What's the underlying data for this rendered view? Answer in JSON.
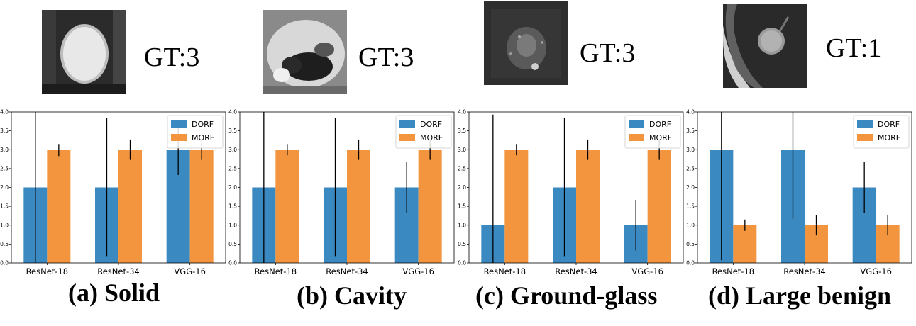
{
  "panels": [
    {
      "gt_label": "GT:3",
      "caption": "(a) Solid",
      "thumb": "solid"
    },
    {
      "gt_label": "GT:3",
      "caption": "(b) Cavity",
      "thumb": "cavity"
    },
    {
      "gt_label": "GT:3",
      "caption": "(c) Ground-glass",
      "thumb": "ground-glass"
    },
    {
      "gt_label": "GT:1",
      "caption": "(d) Large benign",
      "thumb": "large-benign"
    }
  ],
  "colors": {
    "dorf": "#3a8ac1",
    "morf": "#f3953f",
    "error": "#000000"
  },
  "chart_data": [
    {
      "type": "bar",
      "categories": [
        "ResNet-18",
        "ResNet-34",
        "VGG-16"
      ],
      "series": [
        {
          "name": "DORF",
          "values": [
            2,
            2,
            3
          ],
          "err_low": [
            0.0,
            0.18,
            2.33
          ],
          "err_high": [
            4.0,
            3.83,
            3.67
          ]
        },
        {
          "name": "MORF",
          "values": [
            3,
            3,
            3
          ],
          "err_low": [
            2.83,
            2.73,
            2.73
          ],
          "err_high": [
            3.15,
            3.27,
            3.27
          ]
        }
      ],
      "ylim": [
        0,
        4.0
      ],
      "yticks": [
        "0.0",
        "0.5",
        "1.0",
        "1.5",
        "2.0",
        "2.5",
        "3.0",
        "3.5",
        "4.0"
      ],
      "legend": "top-right"
    },
    {
      "type": "bar",
      "categories": [
        "ResNet-18",
        "ResNet-34",
        "VGG-16"
      ],
      "series": [
        {
          "name": "DORF",
          "values": [
            2,
            2,
            2
          ],
          "err_low": [
            0.0,
            0.18,
            1.33
          ],
          "err_high": [
            4.0,
            3.83,
            2.67
          ]
        },
        {
          "name": "MORF",
          "values": [
            3,
            3,
            3
          ],
          "err_low": [
            2.85,
            2.73,
            2.73
          ],
          "err_high": [
            3.15,
            3.27,
            3.27
          ]
        }
      ],
      "ylim": [
        0,
        4.0
      ],
      "yticks": [
        "0.0",
        "0.5",
        "1.0",
        "1.5",
        "2.0",
        "2.5",
        "3.0",
        "3.5",
        "4.0"
      ],
      "legend": "top-right"
    },
    {
      "type": "bar",
      "categories": [
        "ResNet-18",
        "ResNet-34",
        "VGG-16"
      ],
      "series": [
        {
          "name": "DORF",
          "values": [
            1,
            2,
            1
          ],
          "err_low": [
            0.0,
            0.18,
            0.33
          ],
          "err_high": [
            3.93,
            3.83,
            1.67
          ]
        },
        {
          "name": "MORF",
          "values": [
            3,
            3,
            3
          ],
          "err_low": [
            2.85,
            2.73,
            2.73
          ],
          "err_high": [
            3.15,
            3.27,
            3.27
          ]
        }
      ],
      "ylim": [
        0,
        4.0
      ],
      "yticks": [
        "0.0",
        "0.5",
        "1.0",
        "1.5",
        "2.0",
        "2.5",
        "3.0",
        "3.5",
        "4.0"
      ],
      "legend": "top-right"
    },
    {
      "type": "bar",
      "categories": [
        "ResNet-18",
        "ResNet-34",
        "VGG-16"
      ],
      "series": [
        {
          "name": "DORF",
          "values": [
            3,
            3,
            2
          ],
          "err_low": [
            0.07,
            1.17,
            1.33
          ],
          "err_high": [
            4.0,
            4.0,
            2.67
          ]
        },
        {
          "name": "MORF",
          "values": [
            1,
            1,
            1
          ],
          "err_low": [
            0.85,
            0.73,
            0.73
          ],
          "err_high": [
            1.15,
            1.27,
            1.27
          ]
        }
      ],
      "ylim": [
        0,
        4.0
      ],
      "yticks": [
        "0.0",
        "0.5",
        "1.0",
        "1.5",
        "2.0",
        "2.5",
        "3.0",
        "3.5",
        "4.0"
      ],
      "legend": "top-right"
    }
  ]
}
